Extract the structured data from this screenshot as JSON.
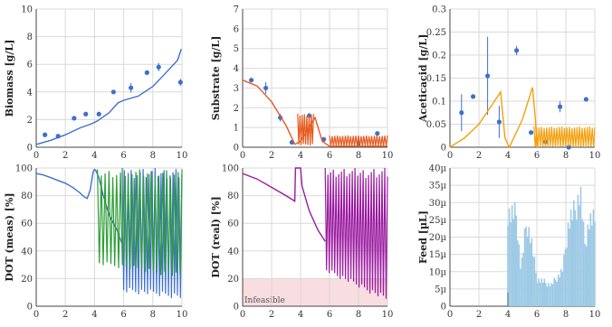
{
  "figure": {
    "grid": "2x3",
    "grid_lines": true
  },
  "chart_data": [
    {
      "id": "biomass",
      "type": "scatter",
      "ylabel": "Biomass [g/L]",
      "xlim": [
        0,
        10
      ],
      "ylim": [
        0,
        10
      ],
      "xticks": [
        "0",
        "2",
        "4",
        "6",
        "8",
        "10"
      ],
      "yticks": [
        "0",
        "2",
        "4",
        "6",
        "8",
        "10"
      ],
      "series": [
        {
          "kind": "points",
          "color": "#3d6fd1",
          "x": [
            0.6,
            1.5,
            2.6,
            3.4,
            4.3,
            5.3,
            6.5,
            7.6,
            8.4,
            9.9
          ],
          "y": [
            0.9,
            0.8,
            2.1,
            2.4,
            2.4,
            4.0,
            4.3,
            5.4,
            5.8,
            4.7
          ],
          "err": [
            0,
            0,
            0,
            0,
            0,
            0,
            0.35,
            0,
            0.3,
            0.25
          ]
        },
        {
          "kind": "line",
          "color": "#3d6fd1",
          "x": [
            0,
            1,
            2,
            3,
            3.8,
            4.2,
            5,
            5.6,
            6,
            7,
            8,
            9,
            9.7,
            9.95
          ],
          "y": [
            0.2,
            0.5,
            0.9,
            1.4,
            1.7,
            1.9,
            2.5,
            3.2,
            3.4,
            3.7,
            4.4,
            5.5,
            6.3,
            7.1
          ]
        }
      ]
    },
    {
      "id": "substrate",
      "type": "scatter",
      "ylabel": "Substrate [g/L]",
      "xlim": [
        0,
        10
      ],
      "ylim": [
        0,
        7
      ],
      "xticks": [
        "0",
        "2",
        "4",
        "6",
        "8",
        "10"
      ],
      "yticks": [
        "0",
        "1",
        "2",
        "3",
        "4",
        "5",
        "6",
        "7"
      ],
      "series": [
        {
          "kind": "points",
          "color": "#3d6fd1",
          "x": [
            0.6,
            1.6,
            2.6,
            3.4,
            4.6,
            5.6,
            8.0,
            9.3
          ],
          "y": [
            3.4,
            3.0,
            1.5,
            0.25,
            1.6,
            0.4,
            0.2,
            0.7
          ],
          "err": [
            0,
            0.3,
            0.2,
            0,
            0,
            0,
            0,
            0
          ]
        },
        {
          "kind": "line",
          "color": "#e65a1e",
          "x": [
            0,
            1,
            2,
            3,
            3.6,
            4.0,
            4.5,
            5.0,
            5.5,
            6.0,
            10
          ],
          "y": [
            3.4,
            3.1,
            2.3,
            1.1,
            0.15,
            0.3,
            0.9,
            1.5,
            0.3,
            0.05,
            0.05
          ]
        },
        {
          "kind": "oscillation",
          "color": "#e65a1e",
          "x": [
            3.8,
            4.9
          ],
          "low": 0.1,
          "high": 1.7,
          "n": 14
        },
        {
          "kind": "oscillation",
          "color": "#e65a1e",
          "x": [
            6.0,
            10.0
          ],
          "low": 0.05,
          "high": 0.6,
          "n": 44
        }
      ]
    },
    {
      "id": "aceticacid",
      "type": "scatter",
      "ylabel": "Aceticacid [g/L]",
      "xlim": [
        0,
        10
      ],
      "ylim": [
        0,
        0.3
      ],
      "xticks": [
        "0",
        "2",
        "4",
        "6",
        "8",
        "10"
      ],
      "yticks": [
        "0",
        "0.05",
        "0.1",
        "0.15",
        "0.2",
        "0.25",
        "0.3"
      ],
      "series": [
        {
          "kind": "points",
          "color": "#3d6fd1",
          "x": [
            0.8,
            1.6,
            2.6,
            3.4,
            4.6,
            5.6,
            6.6,
            7.6,
            8.2,
            9.4
          ],
          "y": [
            0.075,
            0.11,
            0.155,
            0.055,
            0.21,
            0.032,
            0.012,
            0.088,
            0.0,
            0.104
          ],
          "err": [
            0.04,
            0,
            0.085,
            0.035,
            0.01,
            0,
            0,
            0.012,
            0,
            0
          ]
        },
        {
          "kind": "line",
          "color": "#f5a00c",
          "x": [
            0,
            1,
            2,
            3.5,
            3.8,
            4.1,
            4.4,
            5,
            5.7,
            5.9,
            6.0
          ],
          "y": [
            0.0,
            0.02,
            0.05,
            0.12,
            0.02,
            0.0,
            0.02,
            0.06,
            0.13,
            0.06,
            0.0
          ]
        },
        {
          "kind": "oscillation",
          "color": "#f5a00c",
          "x": [
            5.8,
            10.0
          ],
          "low": 0.0,
          "high": 0.045,
          "n": 48
        }
      ]
    },
    {
      "id": "dot_meas",
      "type": "line",
      "ylabel": "DOT (meas) [%]",
      "xlim": [
        0,
        10
      ],
      "ylim": [
        0,
        100
      ],
      "xticks": [
        "0",
        "2",
        "4",
        "6",
        "8",
        "10"
      ],
      "yticks": [
        "0",
        "20",
        "40",
        "60",
        "80",
        "100"
      ],
      "series": [
        {
          "kind": "line",
          "color": "#3d6fd1",
          "x": [
            0,
            0.5,
            1,
            1.5,
            2,
            2.5,
            3,
            3.3,
            3.5,
            3.7,
            3.9,
            4.0,
            4.1,
            4.3,
            4.6,
            5.0,
            5.5,
            5.9
          ],
          "y": [
            96,
            95,
            93,
            91,
            89,
            86,
            82,
            79,
            78,
            84,
            97,
            99,
            98,
            93,
            80,
            66,
            56,
            45
          ]
        },
        {
          "kind": "oscillation",
          "color": "#3d6fd1",
          "x": [
            5.9,
            10.0
          ],
          "low": 10,
          "high": 100,
          "n": 40,
          "low_end": 5
        },
        {
          "kind": "oscillation",
          "color": "#2e9e36",
          "x": [
            4.2,
            10.0
          ],
          "low": 30,
          "high": 99,
          "n": 44,
          "low_end": 20
        }
      ]
    },
    {
      "id": "dot_real",
      "type": "line",
      "ylabel": "DOT (real) [%]",
      "xlim": [
        0,
        10
      ],
      "ylim": [
        0,
        100
      ],
      "xticks": [
        "0",
        "2",
        "4",
        "6",
        "8",
        "10"
      ],
      "yticks": [
        "0",
        "20",
        "40",
        "60",
        "80",
        "100"
      ],
      "infeasible": {
        "label": "Infeasible",
        "y0": 0,
        "y1": 20,
        "color": "#f4c7cd"
      },
      "series": [
        {
          "kind": "line",
          "color": "#9a1aa0",
          "x": [
            0,
            1,
            2,
            3,
            3.6,
            3.65,
            3.9,
            4.0,
            4.1,
            4.6,
            5.2,
            5.7
          ],
          "y": [
            96,
            92,
            86,
            80,
            76,
            100,
            100,
            100,
            87,
            69,
            55,
            47
          ]
        },
        {
          "kind": "oscillation",
          "color": "#9a1aa0",
          "x": [
            5.7,
            10.0
          ],
          "low": 25,
          "high": 100,
          "n": 46,
          "low_end": 3
        }
      ]
    },
    {
      "id": "feed",
      "type": "bar",
      "ylabel": "Feed [µL]",
      "xlim": [
        0,
        10
      ],
      "ylim": [
        0,
        40
      ],
      "xticks": [
        "0",
        "2",
        "4",
        "6",
        "8",
        "10"
      ],
      "yticks": [
        "0",
        "5µ",
        "10µ",
        "15µ",
        "20µ",
        "25µ",
        "30µ",
        "35µ",
        "40µ"
      ],
      "series": [
        {
          "kind": "spikes",
          "color": "#9ecae6",
          "x0": 4.0,
          "x1": 10.0,
          "n": 62,
          "base_low": 4,
          "peaks": [
            [
              4.0,
              31
            ],
            [
              4.6,
              30
            ],
            [
              4.9,
              12
            ],
            [
              5.3,
              28
            ],
            [
              5.6,
              22
            ],
            [
              6.0,
              9
            ],
            [
              7.0,
              7
            ],
            [
              7.8,
              12
            ],
            [
              8.2,
              28
            ],
            [
              8.6,
              31
            ],
            [
              9.0,
              38
            ],
            [
              9.3,
              20
            ],
            [
              9.6,
              28
            ],
            [
              10.0,
              28
            ]
          ]
        }
      ]
    }
  ]
}
